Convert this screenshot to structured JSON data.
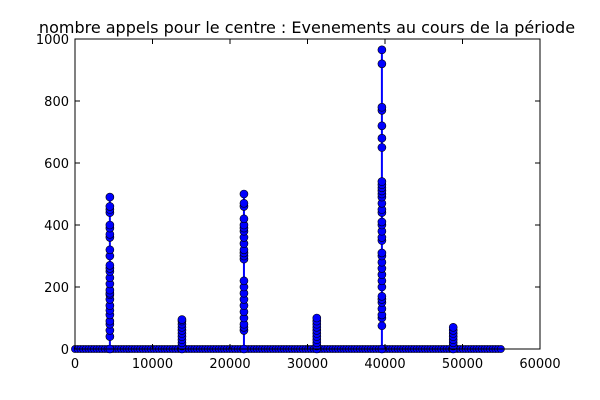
{
  "chart_data": {
    "type": "line",
    "title": "nombre appels pour le centre : Evenements au cours de la période",
    "xlabel": "",
    "ylabel": "",
    "xlim": [
      0,
      60000
    ],
    "ylim": [
      0,
      1000
    ],
    "xticks": [
      0,
      10000,
      20000,
      30000,
      40000,
      50000,
      60000
    ],
    "yticks": [
      0,
      200,
      400,
      600,
      800,
      1000
    ],
    "grid": false,
    "legend": "none",
    "series": [
      {
        "color": "#0000ff",
        "marker": "circle",
        "clusters": [
          {
            "x": 4500,
            "y": [
              0,
              40,
              60,
              80,
              90,
              110,
              125,
              140,
              160,
              175,
              180,
              190,
              210,
              230,
              250,
              260,
              270,
              300,
              320,
              360,
              370,
              390,
              400,
              440,
              450,
              460,
              490
            ]
          },
          {
            "x": 13800,
            "y": [
              0,
              10,
              20,
              30,
              40,
              50,
              60,
              70,
              80,
              90,
              95
            ]
          },
          {
            "x": 21800,
            "y": [
              0,
              60,
              70,
              80,
              100,
              120,
              140,
              160,
              180,
              200,
              220,
              290,
              300,
              310,
              320,
              340,
              360,
              380,
              390,
              400,
              420,
              460,
              470,
              500
            ]
          },
          {
            "x": 31200,
            "y": [
              0,
              10,
              20,
              30,
              40,
              50,
              60,
              70,
              80,
              90,
              100
            ]
          },
          {
            "x": 39600,
            "y": [
              0,
              75,
              100,
              110,
              130,
              150,
              160,
              170,
              200,
              220,
              240,
              260,
              280,
              300,
              310,
              350,
              360,
              380,
              400,
              410,
              440,
              450,
              470,
              490,
              500,
              510,
              520,
              530,
              540,
              650,
              680,
              720,
              770,
              780,
              920,
              965
            ]
          },
          {
            "x": 48800,
            "y": [
              0,
              10,
              20,
              30,
              40,
              50,
              60,
              70
            ]
          }
        ],
        "baseline": {
          "x_start": 0,
          "x_end": 55000,
          "y": 0
        }
      }
    ]
  }
}
